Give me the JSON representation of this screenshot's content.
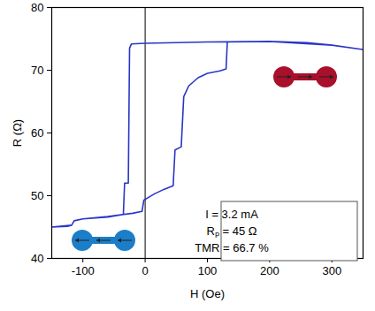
{
  "chart_data": {
    "type": "line",
    "x_label": "H (Oe)",
    "y_label": "R (Ω)",
    "color": "#2a35c8",
    "x": [
      -150,
      -125,
      -118,
      -114,
      -100,
      -60,
      -20,
      -5,
      -2,
      5,
      15,
      30,
      45,
      48,
      58,
      62,
      70,
      85,
      100,
      120,
      130,
      132,
      200,
      260,
      300,
      350,
      300,
      200,
      100,
      0,
      -22,
      -25,
      -27,
      -33,
      -35,
      -60,
      -100,
      -114,
      -118,
      -150
    ],
    "values": [
      45,
      45.1,
      45.3,
      46,
      46.3,
      46.7,
      47.2,
      47.5,
      49.3,
      49.7,
      50.3,
      51,
      51.6,
      57.3,
      57.8,
      65.8,
      67.5,
      68.8,
      69.5,
      69.9,
      70.2,
      74.5,
      74.6,
      74.4,
      74,
      73.3,
      74,
      74.6,
      74.5,
      74.3,
      74.2,
      73.5,
      52,
      52,
      47,
      46.6,
      46.3,
      46,
      45.3,
      45
    ],
    "xlim": [
      -150,
      350
    ],
    "ylim": [
      40,
      80
    ],
    "xticks": [
      -100,
      0,
      100,
      200,
      300
    ],
    "yticks": [
      40,
      50,
      60,
      70,
      80
    ],
    "vline": 0,
    "annotations": [
      "I = 3.2 mA",
      "Rₚ = 45 Ω",
      "TMR = 66.7 %"
    ],
    "grid": false
  }
}
